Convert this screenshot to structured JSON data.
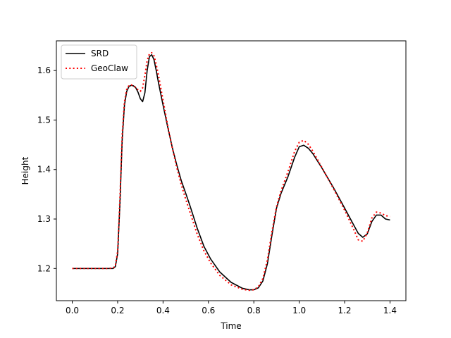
{
  "chart_data": {
    "type": "line",
    "xlabel": "Time",
    "ylabel": "Height",
    "xlim": [
      -0.07,
      1.47
    ],
    "ylim": [
      1.135,
      1.66
    ],
    "xticks": [
      0.0,
      0.2,
      0.4,
      0.6,
      0.8,
      1.0,
      1.2,
      1.4
    ],
    "xtick_labels": [
      "0.0",
      "0.2",
      "0.4",
      "0.6",
      "0.8",
      "1.0",
      "1.2",
      "1.4"
    ],
    "yticks": [
      1.2,
      1.3,
      1.4,
      1.5,
      1.6
    ],
    "ytick_labels": [
      "1.2",
      "1.3",
      "1.4",
      "1.5",
      "1.6"
    ],
    "grid": false,
    "legend_position": "top-left",
    "series": [
      {
        "name": "SRD",
        "color": "#000000",
        "style": "solid",
        "x": [
          0.0,
          0.05,
          0.1,
          0.15,
          0.18,
          0.19,
          0.2,
          0.21,
          0.22,
          0.23,
          0.24,
          0.25,
          0.26,
          0.27,
          0.28,
          0.29,
          0.3,
          0.31,
          0.32,
          0.33,
          0.34,
          0.35,
          0.36,
          0.37,
          0.38,
          0.4,
          0.42,
          0.44,
          0.46,
          0.48,
          0.5,
          0.52,
          0.55,
          0.58,
          0.61,
          0.65,
          0.7,
          0.75,
          0.78,
          0.8,
          0.82,
          0.84,
          0.86,
          0.88,
          0.9,
          0.92,
          0.95,
          0.98,
          1.0,
          1.02,
          1.04,
          1.06,
          1.1,
          1.15,
          1.2,
          1.24,
          1.26,
          1.28,
          1.3,
          1.32,
          1.34,
          1.36,
          1.38,
          1.4
        ],
        "y": [
          1.2,
          1.2,
          1.2,
          1.2,
          1.2,
          1.204,
          1.23,
          1.33,
          1.46,
          1.53,
          1.558,
          1.568,
          1.57,
          1.569,
          1.565,
          1.556,
          1.543,
          1.537,
          1.555,
          1.6,
          1.628,
          1.632,
          1.622,
          1.6,
          1.575,
          1.53,
          1.487,
          1.446,
          1.41,
          1.378,
          1.352,
          1.325,
          1.282,
          1.245,
          1.219,
          1.193,
          1.172,
          1.16,
          1.157,
          1.157,
          1.161,
          1.175,
          1.21,
          1.268,
          1.322,
          1.352,
          1.385,
          1.425,
          1.446,
          1.449,
          1.443,
          1.432,
          1.403,
          1.364,
          1.322,
          1.288,
          1.271,
          1.263,
          1.27,
          1.295,
          1.308,
          1.308,
          1.3,
          1.298
        ]
      },
      {
        "name": "GeoClaw",
        "color": "#ff0000",
        "style": "dotted",
        "x": [
          0.0,
          0.05,
          0.1,
          0.15,
          0.18,
          0.19,
          0.2,
          0.21,
          0.22,
          0.23,
          0.24,
          0.25,
          0.26,
          0.27,
          0.28,
          0.29,
          0.3,
          0.31,
          0.32,
          0.33,
          0.34,
          0.35,
          0.36,
          0.37,
          0.38,
          0.4,
          0.42,
          0.44,
          0.46,
          0.48,
          0.5,
          0.52,
          0.55,
          0.58,
          0.61,
          0.65,
          0.7,
          0.75,
          0.78,
          0.8,
          0.82,
          0.84,
          0.86,
          0.88,
          0.9,
          0.92,
          0.95,
          0.98,
          1.0,
          1.02,
          1.04,
          1.06,
          1.1,
          1.15,
          1.2,
          1.24,
          1.26,
          1.28,
          1.3,
          1.32,
          1.34,
          1.36,
          1.38,
          1.4
        ],
        "y": [
          1.2,
          1.2,
          1.2,
          1.2,
          1.201,
          1.206,
          1.235,
          1.34,
          1.47,
          1.537,
          1.562,
          1.57,
          1.571,
          1.569,
          1.566,
          1.561,
          1.558,
          1.565,
          1.59,
          1.62,
          1.634,
          1.636,
          1.63,
          1.612,
          1.59,
          1.54,
          1.49,
          1.445,
          1.405,
          1.37,
          1.34,
          1.312,
          1.27,
          1.236,
          1.211,
          1.186,
          1.167,
          1.158,
          1.156,
          1.157,
          1.163,
          1.18,
          1.218,
          1.275,
          1.325,
          1.357,
          1.395,
          1.437,
          1.455,
          1.459,
          1.451,
          1.437,
          1.404,
          1.362,
          1.318,
          1.279,
          1.258,
          1.255,
          1.272,
          1.302,
          1.314,
          1.312,
          1.307,
          1.305
        ]
      }
    ]
  }
}
